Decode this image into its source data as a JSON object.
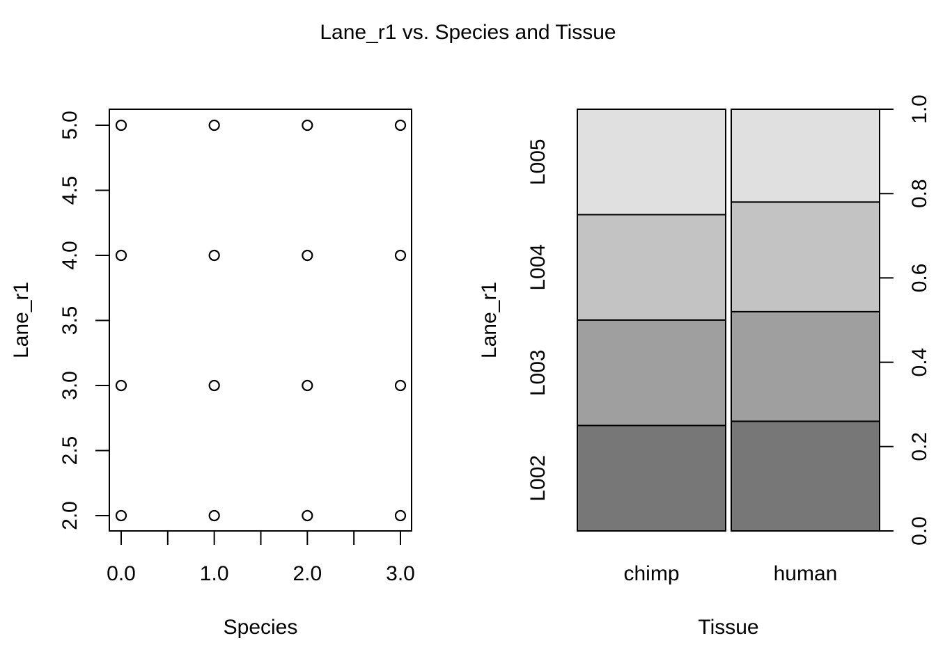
{
  "title": "Lane_r1 vs. Species and Tissue",
  "chart_data": [
    {
      "type": "scatter",
      "xlabel": "Species",
      "ylabel": "Lane_r1",
      "xlim": [
        0,
        3
      ],
      "ylim": [
        2,
        5
      ],
      "x_ticks": [
        "0.0",
        "1.0",
        "2.0",
        "3.0"
      ],
      "x_minor_ticks": [
        0.5,
        1.5,
        2.5
      ],
      "y_ticks": [
        "2.0",
        "2.5",
        "3.0",
        "3.5",
        "4.0",
        "4.5",
        "5.0"
      ],
      "points": [
        {
          "x": 0,
          "y": 2
        },
        {
          "x": 1,
          "y": 2
        },
        {
          "x": 2,
          "y": 2
        },
        {
          "x": 3,
          "y": 2
        },
        {
          "x": 0,
          "y": 3
        },
        {
          "x": 1,
          "y": 3
        },
        {
          "x": 2,
          "y": 3
        },
        {
          "x": 3,
          "y": 3
        },
        {
          "x": 0,
          "y": 4
        },
        {
          "x": 1,
          "y": 4
        },
        {
          "x": 2,
          "y": 4
        },
        {
          "x": 3,
          "y": 4
        },
        {
          "x": 0,
          "y": 5
        },
        {
          "x": 1,
          "y": 5
        },
        {
          "x": 2,
          "y": 5
        },
        {
          "x": 3,
          "y": 5
        }
      ]
    },
    {
      "type": "bar",
      "subtype": "spineplot",
      "xlabel": "Tissue",
      "ylabel": "Lane_r1",
      "categories": [
        "chimp",
        "human"
      ],
      "category_widths": [
        0.5,
        0.5
      ],
      "levels": [
        "L002",
        "L003",
        "L004",
        "L005"
      ],
      "level_colors": [
        "#777777",
        "#9f9f9f",
        "#c3c3c3",
        "#e0e0e0"
      ],
      "proportions": [
        [
          0.25,
          0.25,
          0.25,
          0.25
        ],
        [
          0.26,
          0.26,
          0.26,
          0.22
        ]
      ],
      "right_axis_ticks": [
        "0.0",
        "0.2",
        "0.4",
        "0.6",
        "0.8",
        "1.0"
      ]
    }
  ]
}
